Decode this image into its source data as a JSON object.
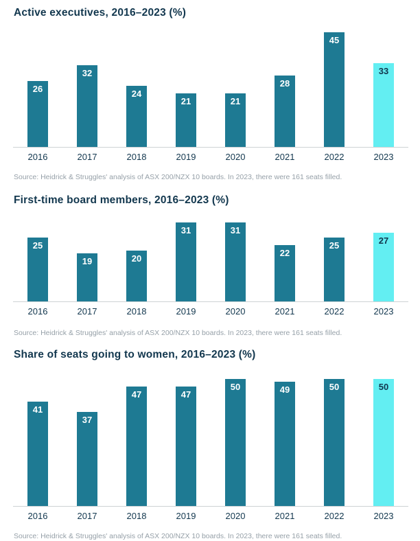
{
  "colors": {
    "bar": "#1E7A93",
    "bar_highlight": "#63EEF2",
    "label_on_bar": "#ffffff",
    "label_on_highlight": "#12374E",
    "title_text": "#12374E",
    "source_text": "#96A0A8",
    "axis_line": "#CDD2D4"
  },
  "chart_data": [
    {
      "type": "bar",
      "title": "Active executives, 2016–2023 (%)",
      "categories": [
        "2016",
        "2017",
        "2018",
        "2019",
        "2020",
        "2021",
        "2022",
        "2023"
      ],
      "values": [
        26,
        32,
        24,
        21,
        21,
        28,
        45,
        33
      ],
      "highlight_index": 7,
      "ylim": [
        0,
        45
      ],
      "grid": false,
      "legend": "none",
      "xlabel": "",
      "ylabel": "",
      "source": "Source: Heidrick & Struggles' analysis of ASX 200/NZX 10 boards. In 2023, there were 161 seats filled."
    },
    {
      "type": "bar",
      "title": "First-time board members, 2016–2023 (%)",
      "categories": [
        "2016",
        "2017",
        "2018",
        "2019",
        "2020",
        "2021",
        "2022",
        "2023"
      ],
      "values": [
        25,
        19,
        20,
        31,
        31,
        22,
        25,
        27
      ],
      "highlight_index": 7,
      "ylim": [
        0,
        31
      ],
      "grid": false,
      "legend": "none",
      "xlabel": "",
      "ylabel": "",
      "source": "Source: Heidrick & Struggles' analysis of ASX 200/NZX 10 boards. In 2023, there were 161 seats filled."
    },
    {
      "type": "bar",
      "title": "Share of seats going to women, 2016–2023 (%)",
      "categories": [
        "2016",
        "2017",
        "2018",
        "2019",
        "2020",
        "2021",
        "2022",
        "2023"
      ],
      "values": [
        41,
        37,
        47,
        47,
        50,
        49,
        50,
        50
      ],
      "highlight_index": 7,
      "ylim": [
        0,
        50
      ],
      "grid": false,
      "legend": "none",
      "xlabel": "",
      "ylabel": "",
      "source": "Source: Heidrick & Struggles' analysis of ASX 200/NZX 10 boards. In 2023, there were 161 seats filled."
    }
  ]
}
